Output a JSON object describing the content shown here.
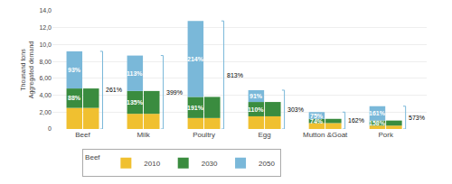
{
  "chart_data": {
    "type": "bar",
    "stacked": true,
    "categories": [
      "Beef",
      "Milk",
      "Poultry",
      "Egg",
      "Mutton &Goat",
      "Pork"
    ],
    "ylabel": "Thousand tons\nAggregated demand",
    "ylim": [
      0,
      14
    ],
    "yticks": [
      0,
      {
        "value": 2,
        "label": "2,00"
      },
      {
        "value": 4,
        "label": "4,00"
      },
      {
        "value": 6,
        "label": "6,00"
      },
      {
        "value": 8,
        "label": "8,00"
      },
      {
        "value": 10,
        "label": "10,0"
      },
      {
        "value": 12,
        "label": "12,0"
      },
      {
        "value": 14,
        "label": "14,0"
      }
    ],
    "grid": true,
    "legend": "bottom",
    "legend_title": "Beef",
    "stacks": [
      [
        {
          "name": "2010",
          "color": "#f0c030",
          "values": [
            2.5,
            1.8,
            1.3,
            1.5,
            0.7,
            0.4
          ]
        },
        {
          "name": "2030",
          "color": "#3a8c3f",
          "values": [
            2.3,
            2.7,
            2.5,
            1.7,
            0.5,
            0.6
          ],
          "labels": [
            "88%",
            "135%",
            "191%",
            "110%",
            "74%",
            "158%"
          ]
        },
        {
          "name": "2050",
          "color": "#7ab8d9",
          "values": [
            4.4,
            4.2,
            9.0,
            1.4,
            0.8,
            1.7
          ],
          "labels": [
            "93%",
            "113%",
            "214%",
            "91%",
            "75%",
            "161%"
          ]
        }
      ],
      [
        {
          "name": "2010",
          "color": "#f0c030",
          "values": [
            2.5,
            1.8,
            1.3,
            1.5,
            0.7,
            0.4
          ]
        },
        {
          "name": "2030",
          "color": "#3a8c3f",
          "values": [
            2.3,
            2.7,
            2.5,
            1.7,
            0.5,
            0.6
          ]
        }
      ]
    ],
    "brackets": {
      "color": "#7ab8d9",
      "values": [
        9.2,
        8.7,
        12.8,
        4.6,
        2.0,
        2.7
      ],
      "labels": [
        "261%",
        "399%",
        "813%",
        "303%",
        "162%",
        "573%"
      ]
    }
  }
}
